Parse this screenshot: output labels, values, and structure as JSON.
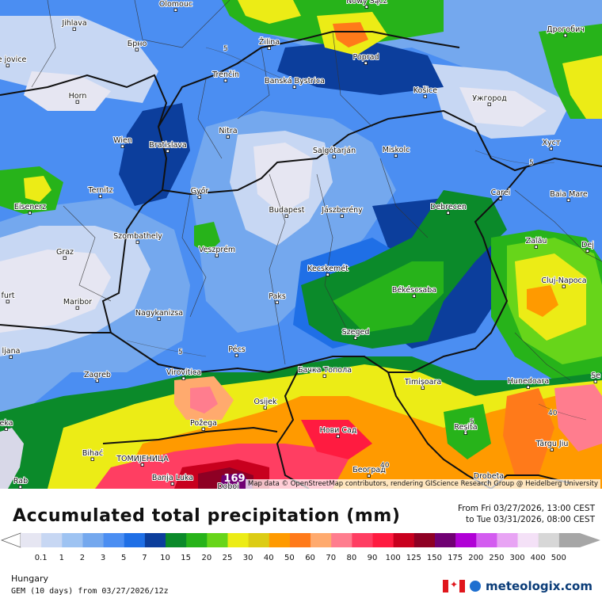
{
  "map": {
    "cities": [
      {
        "name": "Olomouc"
      },
      {
        "name": "Nowy Sącz"
      },
      {
        "name": "Jihlava"
      },
      {
        "name": "Žilina"
      },
      {
        "name": "Брно"
      },
      {
        "name": "Дрогобич"
      },
      {
        "name": "Trenčín"
      },
      {
        "name": "Poprad"
      },
      {
        "name": "Banská Bystrica"
      },
      {
        "name": "Košice"
      },
      {
        "name": "Horn"
      },
      {
        "name": "Ужгород"
      },
      {
        "name": "Nitra"
      },
      {
        "name": "Wien"
      },
      {
        "name": "Bratislava"
      },
      {
        "name": "Salgótarján"
      },
      {
        "name": "Miskolc"
      },
      {
        "name": "Хуст"
      },
      {
        "name": "Ternitz"
      },
      {
        "name": "Győr"
      },
      {
        "name": "Carei"
      },
      {
        "name": "Baia Mare"
      },
      {
        "name": "Eisenerz"
      },
      {
        "name": "Budapest"
      },
      {
        "name": "Jászberény"
      },
      {
        "name": "Debrecen"
      },
      {
        "name": "Szombathely"
      },
      {
        "name": "Zalău"
      },
      {
        "name": "Graz"
      },
      {
        "name": "Veszprém"
      },
      {
        "name": "Dej"
      },
      {
        "name": "Kecskemét"
      },
      {
        "name": "Cluj-Napoca"
      },
      {
        "name": "Maribor"
      },
      {
        "name": "Paks"
      },
      {
        "name": "Békéscsaba"
      },
      {
        "name": "Nagykanizsa"
      },
      {
        "name": "Szeged"
      },
      {
        "name": "ljana"
      },
      {
        "name": "Pécs"
      },
      {
        "name": "Бачка Топола"
      },
      {
        "name": "Zagreb"
      },
      {
        "name": "Virovitica"
      },
      {
        "name": "Timișoara"
      },
      {
        "name": "Hunedoara"
      },
      {
        "name": "Osijek"
      },
      {
        "name": "Požega"
      },
      {
        "name": "Нови Сад"
      },
      {
        "name": "Reșita"
      },
      {
        "name": "Târgu Jiu"
      },
      {
        "name": "Bihać"
      },
      {
        "name": "ТОМИЈЕНИЦА"
      },
      {
        "name": "Banja Luka"
      },
      {
        "name": "Doboj"
      },
      {
        "name": "Београд"
      },
      {
        "name": "Drobeta"
      },
      {
        "name": "ske jovice"
      },
      {
        "name": "furt"
      },
      {
        "name": "eka"
      },
      {
        "name": "Rab"
      },
      {
        "name": "Se"
      }
    ],
    "contour_labels": [
      "5",
      "5",
      "5",
      "5",
      "40",
      "40"
    ],
    "max_value": "169",
    "attribution": "Map data © OpenStreetMap contributors, rendering GIScience Research Group @ Heidelberg University"
  },
  "footer": {
    "title": "Accumulated total precipitation (mm)",
    "from_text": "From Fri 03/27/2026, 13:00 CEST",
    "to_text": "to Tue 03/31/2026, 08:00 CEST",
    "region": "Hungary",
    "model": "GEM (10 days) from 03/27/2026/12z",
    "brand": "meteologix.com"
  },
  "legend": {
    "labels": [
      "0.1",
      "1",
      "2",
      "3",
      "5",
      "7",
      "10",
      "15",
      "20",
      "25",
      "30",
      "40",
      "50",
      "60",
      "70",
      "80",
      "90",
      "100",
      "125",
      "150",
      "175",
      "200",
      "250",
      "300",
      "400",
      "500"
    ],
    "colors": [
      "#e6e6f2",
      "#c7d7f3",
      "#9ec3f2",
      "#74a8ee",
      "#4b8ef2",
      "#1f6fe6",
      "#0c3e9c",
      "#0b8a2a",
      "#27b31a",
      "#67d51a",
      "#ecec16",
      "#dccc14",
      "#ff9a00",
      "#ff7a1a",
      "#ffaa6e",
      "#ff7d8e",
      "#ff3e62",
      "#ff1b40",
      "#c8001e",
      "#8e0024",
      "#700073",
      "#b000d6",
      "#d35cf0",
      "#e8a4f4",
      "#f4e1f7",
      "#d7d7d7",
      "#a6a6a6"
    ]
  }
}
